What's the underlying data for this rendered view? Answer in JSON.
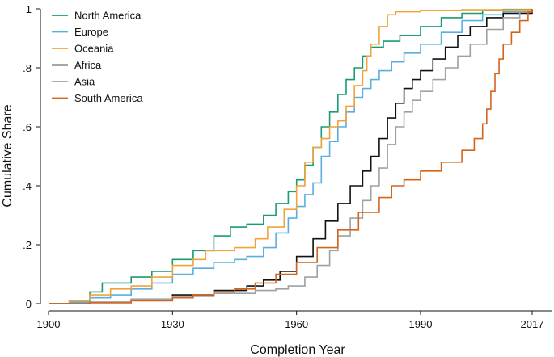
{
  "chart_data": {
    "type": "line",
    "step": true,
    "xlabel": "Completion Year",
    "ylabel": "Cumulative Share",
    "xlim": [
      1900,
      2017
    ],
    "ylim": [
      0,
      1
    ],
    "x_ticks": [
      1900,
      1930,
      1960,
      1990,
      2017
    ],
    "x_tick_labels": [
      "1900",
      "1930",
      "1960",
      "1990",
      "2017"
    ],
    "y_ticks": [
      0,
      0.2,
      0.4,
      0.6,
      0.8,
      1
    ],
    "y_tick_labels": [
      "0",
      ".2",
      ".4",
      ".6",
      ".8",
      "1"
    ],
    "legend_position": "top-left",
    "grid": false,
    "series": [
      {
        "name": "North America",
        "color": "#1a9b73",
        "points": [
          [
            1900,
            0
          ],
          [
            1905,
            0.01
          ],
          [
            1910,
            0.04
          ],
          [
            1913,
            0.07
          ],
          [
            1920,
            0.09
          ],
          [
            1925,
            0.11
          ],
          [
            1930,
            0.15
          ],
          [
            1935,
            0.18
          ],
          [
            1940,
            0.23
          ],
          [
            1944,
            0.26
          ],
          [
            1948,
            0.27
          ],
          [
            1952,
            0.3
          ],
          [
            1955,
            0.34
          ],
          [
            1958,
            0.38
          ],
          [
            1960,
            0.42
          ],
          [
            1962,
            0.47
          ],
          [
            1964,
            0.53
          ],
          [
            1966,
            0.6
          ],
          [
            1968,
            0.65
          ],
          [
            1970,
            0.71
          ],
          [
            1972,
            0.76
          ],
          [
            1974,
            0.8
          ],
          [
            1976,
            0.84
          ],
          [
            1978,
            0.87
          ],
          [
            1981,
            0.89
          ],
          [
            1985,
            0.91
          ],
          [
            1990,
            0.94
          ],
          [
            1995,
            0.97
          ],
          [
            2000,
            0.985
          ],
          [
            2005,
            0.995
          ],
          [
            2010,
            0.998
          ],
          [
            2017,
            1.0
          ]
        ]
      },
      {
        "name": "Europe",
        "color": "#5aaee0",
        "points": [
          [
            1900,
            0
          ],
          [
            1905,
            0.005
          ],
          [
            1910,
            0.02
          ],
          [
            1915,
            0.03
          ],
          [
            1920,
            0.05
          ],
          [
            1925,
            0.07
          ],
          [
            1930,
            0.1
          ],
          [
            1935,
            0.12
          ],
          [
            1940,
            0.14
          ],
          [
            1945,
            0.15
          ],
          [
            1948,
            0.16
          ],
          [
            1952,
            0.19
          ],
          [
            1955,
            0.24
          ],
          [
            1958,
            0.29
          ],
          [
            1960,
            0.33
          ],
          [
            1962,
            0.37
          ],
          [
            1964,
            0.41
          ],
          [
            1966,
            0.5
          ],
          [
            1968,
            0.55
          ],
          [
            1970,
            0.6
          ],
          [
            1972,
            0.65
          ],
          [
            1974,
            0.7
          ],
          [
            1976,
            0.73
          ],
          [
            1978,
            0.76
          ],
          [
            1980,
            0.79
          ],
          [
            1983,
            0.82
          ],
          [
            1986,
            0.85
          ],
          [
            1990,
            0.88
          ],
          [
            1995,
            0.92
          ],
          [
            2000,
            0.96
          ],
          [
            2005,
            0.98
          ],
          [
            2010,
            0.99
          ],
          [
            2017,
            1.0
          ]
        ]
      },
      {
        "name": "Oceania",
        "color": "#f0a33a",
        "points": [
          [
            1900,
            0
          ],
          [
            1905,
            0.01
          ],
          [
            1910,
            0.03
          ],
          [
            1915,
            0.05
          ],
          [
            1920,
            0.06
          ],
          [
            1925,
            0.09
          ],
          [
            1930,
            0.13
          ],
          [
            1935,
            0.15
          ],
          [
            1938,
            0.18
          ],
          [
            1945,
            0.19
          ],
          [
            1950,
            0.22
          ],
          [
            1953,
            0.26
          ],
          [
            1957,
            0.32
          ],
          [
            1960,
            0.4
          ],
          [
            1962,
            0.48
          ],
          [
            1964,
            0.53
          ],
          [
            1966,
            0.56
          ],
          [
            1968,
            0.6
          ],
          [
            1970,
            0.62
          ],
          [
            1972,
            0.67
          ],
          [
            1974,
            0.74
          ],
          [
            1976,
            0.79
          ],
          [
            1977,
            0.84
          ],
          [
            1978,
            0.88
          ],
          [
            1980,
            0.94
          ],
          [
            1982,
            0.98
          ],
          [
            1984,
            0.99
          ],
          [
            1990,
            0.995
          ],
          [
            2000,
            0.997
          ],
          [
            2017,
            1.0
          ]
        ]
      },
      {
        "name": "Africa",
        "color": "#111111",
        "points": [
          [
            1900,
            0
          ],
          [
            1910,
            0.005
          ],
          [
            1920,
            0.015
          ],
          [
            1930,
            0.03
          ],
          [
            1940,
            0.045
          ],
          [
            1948,
            0.06
          ],
          [
            1952,
            0.08
          ],
          [
            1956,
            0.11
          ],
          [
            1960,
            0.16
          ],
          [
            1964,
            0.22
          ],
          [
            1967,
            0.28
          ],
          [
            1970,
            0.34
          ],
          [
            1973,
            0.4
          ],
          [
            1976,
            0.45
          ],
          [
            1978,
            0.5
          ],
          [
            1980,
            0.56
          ],
          [
            1982,
            0.63
          ],
          [
            1984,
            0.68
          ],
          [
            1986,
            0.73
          ],
          [
            1988,
            0.76
          ],
          [
            1990,
            0.79
          ],
          [
            1993,
            0.83
          ],
          [
            1996,
            0.87
          ],
          [
            1999,
            0.91
          ],
          [
            2002,
            0.94
          ],
          [
            2006,
            0.97
          ],
          [
            2010,
            0.985
          ],
          [
            2017,
            1.0
          ]
        ]
      },
      {
        "name": "Asia",
        "color": "#a0a0a0",
        "points": [
          [
            1900,
            0
          ],
          [
            1910,
            0.005
          ],
          [
            1920,
            0.015
          ],
          [
            1930,
            0.025
          ],
          [
            1940,
            0.035
          ],
          [
            1950,
            0.045
          ],
          [
            1955,
            0.05
          ],
          [
            1958,
            0.06
          ],
          [
            1962,
            0.09
          ],
          [
            1965,
            0.13
          ],
          [
            1968,
            0.18
          ],
          [
            1970,
            0.23
          ],
          [
            1973,
            0.29
          ],
          [
            1976,
            0.35
          ],
          [
            1978,
            0.4
          ],
          [
            1980,
            0.46
          ],
          [
            1982,
            0.54
          ],
          [
            1984,
            0.6
          ],
          [
            1986,
            0.65
          ],
          [
            1988,
            0.69
          ],
          [
            1990,
            0.72
          ],
          [
            1993,
            0.76
          ],
          [
            1996,
            0.8
          ],
          [
            1999,
            0.84
          ],
          [
            2002,
            0.88
          ],
          [
            2006,
            0.93
          ],
          [
            2010,
            0.97
          ],
          [
            2014,
            0.99
          ],
          [
            2017,
            1.0
          ]
        ]
      },
      {
        "name": "South America",
        "color": "#d2651e",
        "points": [
          [
            1900,
            0
          ],
          [
            1910,
            0.003
          ],
          [
            1920,
            0.01
          ],
          [
            1930,
            0.02
          ],
          [
            1935,
            0.03
          ],
          [
            1940,
            0.04
          ],
          [
            1945,
            0.05
          ],
          [
            1950,
            0.07
          ],
          [
            1955,
            0.1
          ],
          [
            1960,
            0.14
          ],
          [
            1965,
            0.19
          ],
          [
            1970,
            0.25
          ],
          [
            1975,
            0.31
          ],
          [
            1980,
            0.36
          ],
          [
            1983,
            0.4
          ],
          [
            1986,
            0.42
          ],
          [
            1990,
            0.45
          ],
          [
            1995,
            0.48
          ],
          [
            2000,
            0.52
          ],
          [
            2003,
            0.56
          ],
          [
            2005,
            0.61
          ],
          [
            2006,
            0.66
          ],
          [
            2007,
            0.72
          ],
          [
            2008,
            0.78
          ],
          [
            2009,
            0.83
          ],
          [
            2010,
            0.88
          ],
          [
            2012,
            0.92
          ],
          [
            2014,
            0.96
          ],
          [
            2016,
            0.99
          ],
          [
            2017,
            1.0
          ]
        ]
      }
    ]
  }
}
